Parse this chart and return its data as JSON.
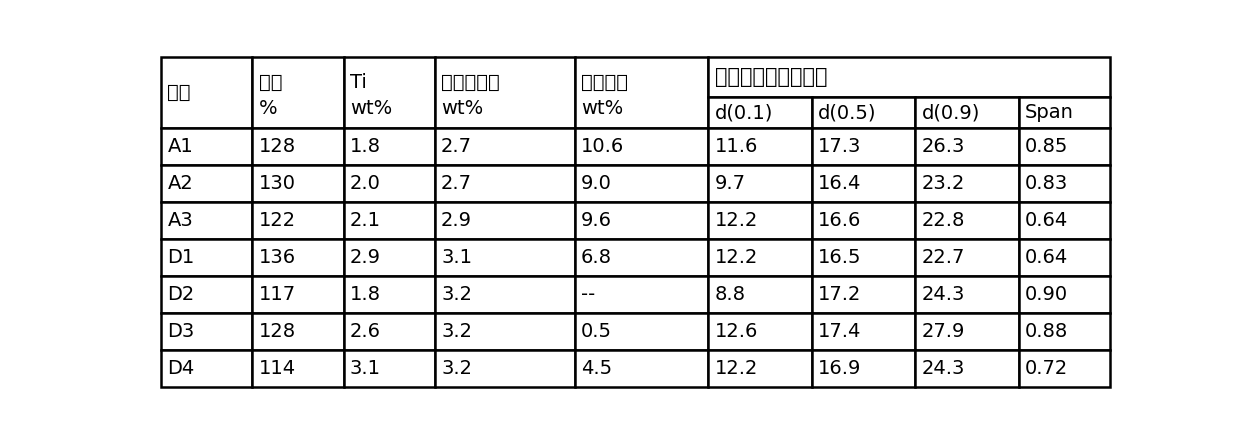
{
  "col_widths_rel": [
    0.75,
    0.75,
    0.75,
    1.15,
    1.1,
    0.85,
    0.85,
    0.85,
    0.75
  ],
  "background_color": "#ffffff",
  "border_color": "#000000",
  "text_color": "#000000",
  "font_size": 14,
  "rows": [
    [
      "A1",
      "128",
      "1.8",
      "2.7",
      "10.6",
      "11.6",
      "17.3",
      "26.3",
      "0.85"
    ],
    [
      "A2",
      "130",
      "2.0",
      "2.7",
      "9.0",
      "9.7",
      "16.4",
      "23.2",
      "0.83"
    ],
    [
      "A3",
      "122",
      "2.1",
      "2.9",
      "9.6",
      "12.2",
      "16.6",
      "22.8",
      "0.64"
    ],
    [
      "D1",
      "136",
      "2.9",
      "3.1",
      "6.8",
      "12.2",
      "16.5",
      "22.7",
      "0.64"
    ],
    [
      "D2",
      "117",
      "1.8",
      "3.2",
      "--",
      "8.8",
      "17.2",
      "24.3",
      "0.90"
    ],
    [
      "D3",
      "128",
      "2.6",
      "3.2",
      "0.5",
      "12.6",
      "17.4",
      "27.9",
      "0.88"
    ],
    [
      "D4",
      "114",
      "3.1",
      "3.2",
      "4.5",
      "12.2",
      "16.9",
      "24.3",
      "0.72"
    ]
  ],
  "header_col1_5": [
    "编号",
    "收率\n%",
    "Ti\nwt%",
    "二醇酯含量\nwt%",
    "二醈含量\nwt%"
  ],
  "header_cat": "催化剂组分粒度分布",
  "header_sub": [
    "d(0.1)",
    "d(0.5)",
    "d(0.9)",
    "Span"
  ]
}
